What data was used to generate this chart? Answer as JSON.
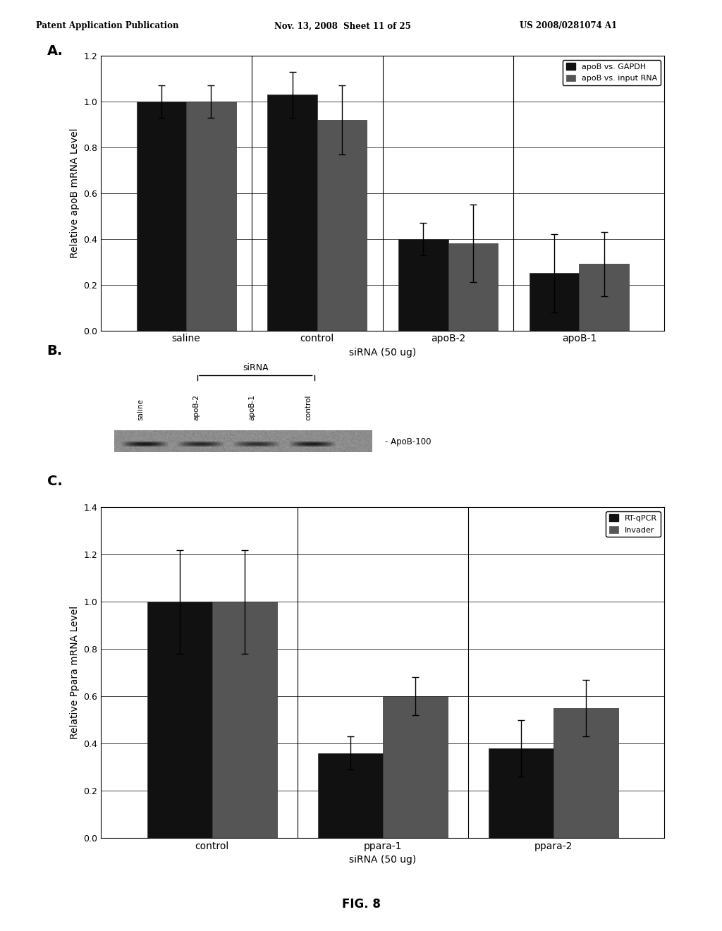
{
  "header_left": "Patent Application Publication",
  "header_mid": "Nov. 13, 2008  Sheet 11 of 25",
  "header_right": "US 2008/0281074 A1",
  "panel_A_label": "A.",
  "panel_B_label": "B.",
  "panel_C_label": "C.",
  "chartA": {
    "categories": [
      "saline",
      "control",
      "apoB-2",
      "apoB-1"
    ],
    "xlabel": "siRNA (50 ug)",
    "ylabel": "Relative apoB mRNA Level",
    "ylim": [
      0.0,
      1.2
    ],
    "yticks": [
      0.0,
      0.2,
      0.4,
      0.6,
      0.8,
      1.0,
      1.2
    ],
    "series1_label": "apoB vs. GAPDH",
    "series2_label": "apoB vs. input RNA",
    "series1_values": [
      1.0,
      1.03,
      0.4,
      0.25
    ],
    "series2_values": [
      1.0,
      0.92,
      0.38,
      0.29
    ],
    "series1_errors": [
      0.07,
      0.1,
      0.07,
      0.17
    ],
    "series2_errors": [
      0.07,
      0.15,
      0.17,
      0.14
    ],
    "bar_color1": "#111111",
    "bar_color2": "#555555",
    "bar_width": 0.38
  },
  "chartC": {
    "categories": [
      "control",
      "ppara-1",
      "ppara-2"
    ],
    "xlabel": "siRNA (50 ug)",
    "ylabel": "Relative Ppara mRNA Level",
    "ylim": [
      0.0,
      1.4
    ],
    "yticks": [
      0.0,
      0.2,
      0.4,
      0.6,
      0.8,
      1.0,
      1.2,
      1.4
    ],
    "series1_label": "RT-qPCR",
    "series2_label": "Invader",
    "series1_values": [
      1.0,
      0.36,
      0.38
    ],
    "series2_values": [
      1.0,
      0.6,
      0.55
    ],
    "series1_errors": [
      0.22,
      0.07,
      0.12
    ],
    "series2_errors": [
      0.22,
      0.08,
      0.12
    ],
    "bar_color1": "#111111",
    "bar_color2": "#555555",
    "bar_width": 0.38
  },
  "fig_label": "FIG. 8",
  "background_color": "#ffffff",
  "text_color": "#000000"
}
